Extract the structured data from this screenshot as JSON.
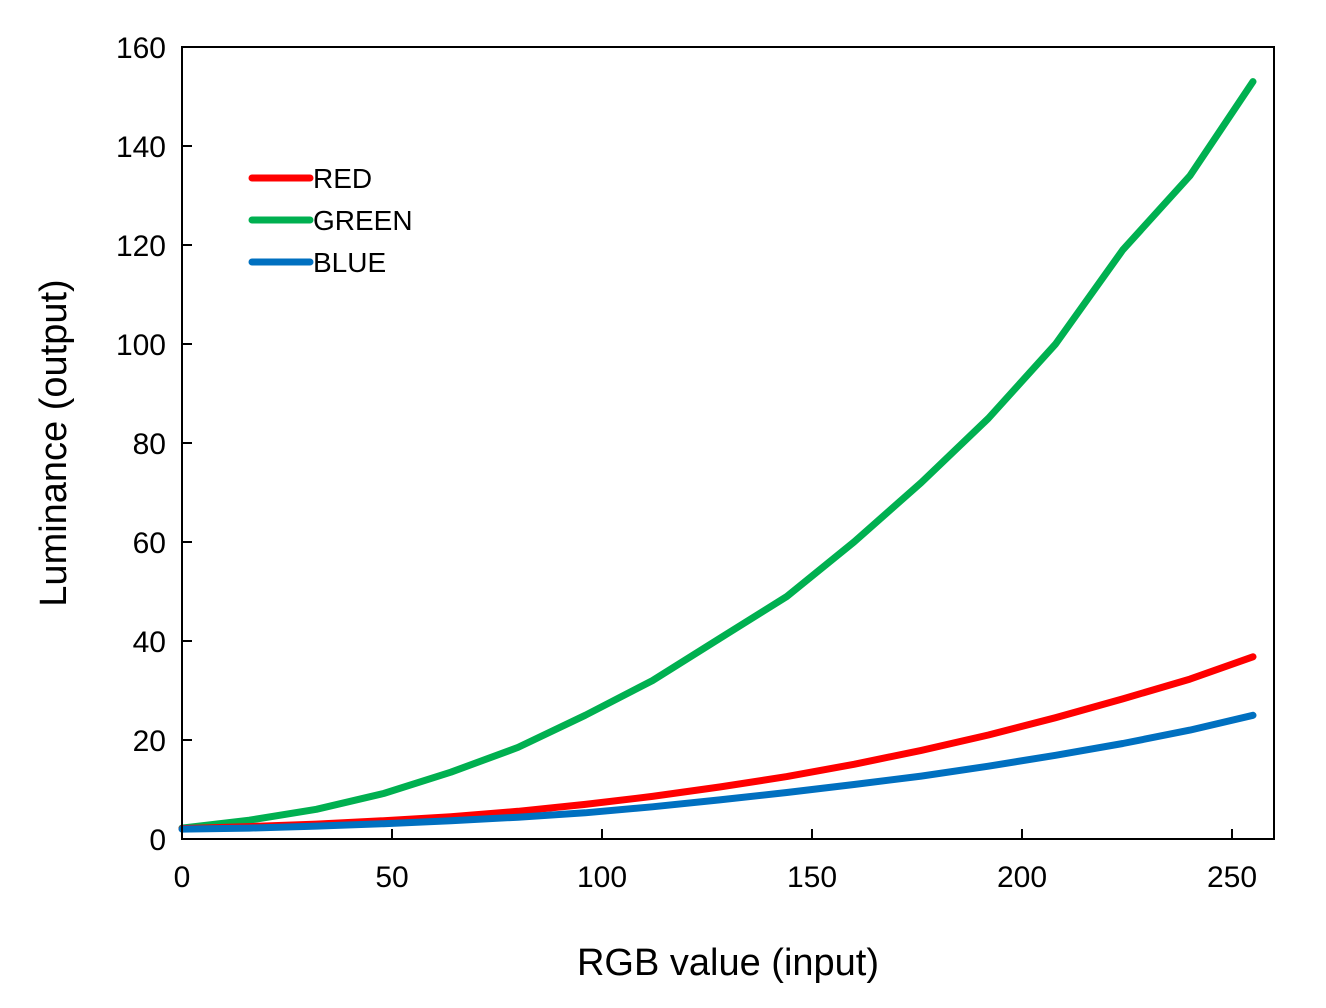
{
  "chart_data": {
    "type": "line",
    "title": "",
    "xlabel": "RGB value (input)",
    "ylabel": "Luminance (output)",
    "xlim": [
      0,
      260
    ],
    "ylim": [
      0,
      160
    ],
    "xticks": [
      0,
      50,
      100,
      150,
      200,
      250
    ],
    "yticks": [
      0,
      20,
      40,
      60,
      80,
      100,
      120,
      140,
      160
    ],
    "grid": false,
    "legend_position": "top-left",
    "x": [
      0,
      16,
      32,
      48,
      64,
      80,
      96,
      112,
      128,
      144,
      160,
      176,
      192,
      208,
      224,
      240,
      255
    ],
    "series": [
      {
        "name": "RED",
        "color": "#ff0000",
        "values": [
          2.1,
          2.5,
          3.0,
          3.7,
          4.5,
          5.6,
          7.0,
          8.6,
          10.5,
          12.6,
          15.1,
          17.9,
          21.0,
          24.5,
          28.3,
          32.3,
          36.8
        ]
      },
      {
        "name": "GREEN",
        "color": "#00b050",
        "values": [
          2.2,
          3.8,
          6.0,
          9.2,
          13.5,
          18.5,
          25.0,
          32.0,
          40.5,
          49.0,
          60.0,
          72.0,
          85.0,
          100.0,
          119.0,
          134.0,
          153.0
        ]
      },
      {
        "name": "BLUE",
        "color": "#0070c0",
        "values": [
          2.0,
          2.2,
          2.6,
          3.1,
          3.7,
          4.4,
          5.3,
          6.5,
          7.9,
          9.4,
          11.0,
          12.7,
          14.7,
          16.9,
          19.3,
          22.0,
          25.0
        ]
      }
    ]
  }
}
